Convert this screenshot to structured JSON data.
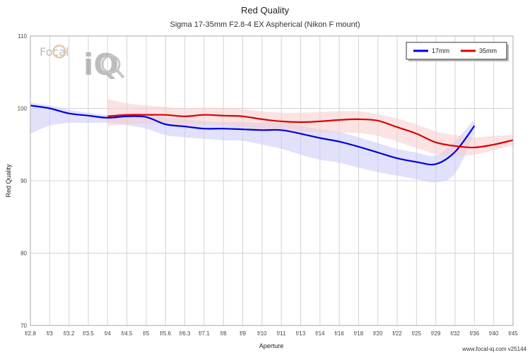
{
  "chart_data": {
    "type": "line",
    "title": "Red Quality",
    "subtitle": "Sigma 17-35mm F2.8-4 EX Aspherical (Nikon F mount)",
    "xlabel": "Aperture",
    "ylabel": "Red Quality",
    "ylim": [
      70,
      110
    ],
    "yticks": [
      70,
      80,
      90,
      100,
      110
    ],
    "categories": [
      "f/2.8",
      "f/3",
      "f/3.2",
      "f/3.5",
      "f/4",
      "f/4.5",
      "f/5",
      "f/5.6",
      "f/6.3",
      "f/7.1",
      "f/8",
      "f/9",
      "f/10",
      "f/11",
      "f/13",
      "f/14",
      "f/16",
      "f/18",
      "f/20",
      "f/22",
      "f/25",
      "f/29",
      "f/32",
      "f/36",
      "f/40",
      "f/45"
    ],
    "grid": true,
    "legend_position": "top-right",
    "series": [
      {
        "name": "17mm",
        "color": "#0000dd",
        "band_color": "#c8c8f8",
        "x": [
          0,
          1,
          2,
          3,
          4,
          5,
          6,
          7,
          8,
          9,
          10,
          11,
          12,
          13,
          14,
          15,
          16,
          17,
          18,
          19,
          20,
          21,
          22,
          23
        ],
        "values": [
          100.4,
          100.0,
          99.3,
          99.0,
          98.7,
          98.9,
          98.8,
          97.8,
          97.5,
          97.2,
          97.2,
          97.1,
          97.0,
          97.0,
          96.5,
          95.9,
          95.4,
          94.7,
          93.9,
          93.1,
          92.6,
          92.3,
          94.0,
          97.6
        ],
        "band_low": [
          96.5,
          97.6,
          98.0,
          98.0,
          98.0,
          97.7,
          97.2,
          96.3,
          96.0,
          95.8,
          95.6,
          95.5,
          95.0,
          94.4,
          93.6,
          92.9,
          92.5,
          91.8,
          91.2,
          90.7,
          90.2,
          89.8,
          91.0,
          96.6
        ],
        "band_high": [
          100.8,
          100.4,
          99.8,
          99.4,
          99.1,
          99.3,
          99.3,
          98.7,
          98.5,
          98.2,
          98.1,
          98.1,
          98.0,
          98.0,
          97.6,
          97.1,
          96.7,
          96.0,
          95.2,
          94.4,
          93.9,
          93.5,
          95.5,
          98.5
        ]
      },
      {
        "name": "35mm",
        "color": "#dd0000",
        "band_color": "#f8cccc",
        "x": [
          4,
          5,
          6,
          7,
          8,
          9,
          10,
          11,
          12,
          13,
          14,
          15,
          16,
          17,
          18,
          19,
          20,
          21,
          22,
          23,
          24,
          25
        ],
        "values": [
          98.9,
          99.1,
          99.1,
          99.1,
          98.9,
          99.1,
          99.0,
          98.9,
          98.5,
          98.2,
          98.1,
          98.2,
          98.4,
          98.5,
          98.3,
          97.4,
          96.5,
          95.3,
          94.8,
          94.6,
          95.0,
          95.6
        ],
        "band_low": [
          97.6,
          97.8,
          97.9,
          97.8,
          97.7,
          97.8,
          97.7,
          97.4,
          97.1,
          96.9,
          96.8,
          96.7,
          96.6,
          96.6,
          96.2,
          95.4,
          94.5,
          93.7,
          93.4,
          93.6,
          94.2,
          94.9
        ],
        "band_high": [
          101.3,
          100.7,
          100.4,
          100.2,
          99.9,
          100.1,
          100.0,
          99.9,
          99.6,
          99.4,
          99.4,
          99.5,
          99.6,
          99.6,
          99.2,
          98.6,
          97.8,
          96.8,
          96.3,
          96.0,
          96.2,
          96.3
        ]
      }
    ]
  },
  "logo": {
    "top_text": "Focal",
    "big_text": "iQ"
  },
  "footer": {
    "credit": "www.focal-iq.com  v25144"
  }
}
